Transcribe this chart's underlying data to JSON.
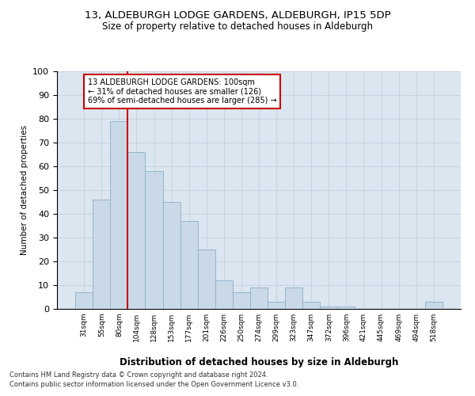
{
  "title1": "13, ALDEBURGH LODGE GARDENS, ALDEBURGH, IP15 5DP",
  "title2": "Size of property relative to detached houses in Aldeburgh",
  "xlabel": "Distribution of detached houses by size in Aldeburgh",
  "ylabel": "Number of detached properties",
  "categories": [
    "31sqm",
    "55sqm",
    "80sqm",
    "104sqm",
    "128sqm",
    "153sqm",
    "177sqm",
    "201sqm",
    "226sqm",
    "250sqm",
    "274sqm",
    "299sqm",
    "323sqm",
    "347sqm",
    "372sqm",
    "396sqm",
    "421sqm",
    "445sqm",
    "469sqm",
    "494sqm",
    "518sqm"
  ],
  "values": [
    7,
    46,
    79,
    66,
    58,
    45,
    37,
    25,
    12,
    7,
    9,
    3,
    9,
    3,
    1,
    1,
    0,
    0,
    0,
    0,
    3
  ],
  "bar_color": "#c9d9e8",
  "bar_edge_color": "#8aafc8",
  "vline_x_index": 2.5,
  "vline_color": "#cc0000",
  "annotation_text": "13 ALDEBURGH LODGE GARDENS: 100sqm\n← 31% of detached houses are smaller (126)\n69% of semi-detached houses are larger (285) →",
  "annotation_box_color": "#ffffff",
  "annotation_box_edge": "#cc0000",
  "ylim": [
    0,
    100
  ],
  "yticks": [
    0,
    10,
    20,
    30,
    40,
    50,
    60,
    70,
    80,
    90,
    100
  ],
  "grid_color": "#c8d4e0",
  "background_color": "#dce6f0",
  "footer1": "Contains HM Land Registry data © Crown copyright and database right 2024.",
  "footer2": "Contains public sector information licensed under the Open Government Licence v3.0."
}
